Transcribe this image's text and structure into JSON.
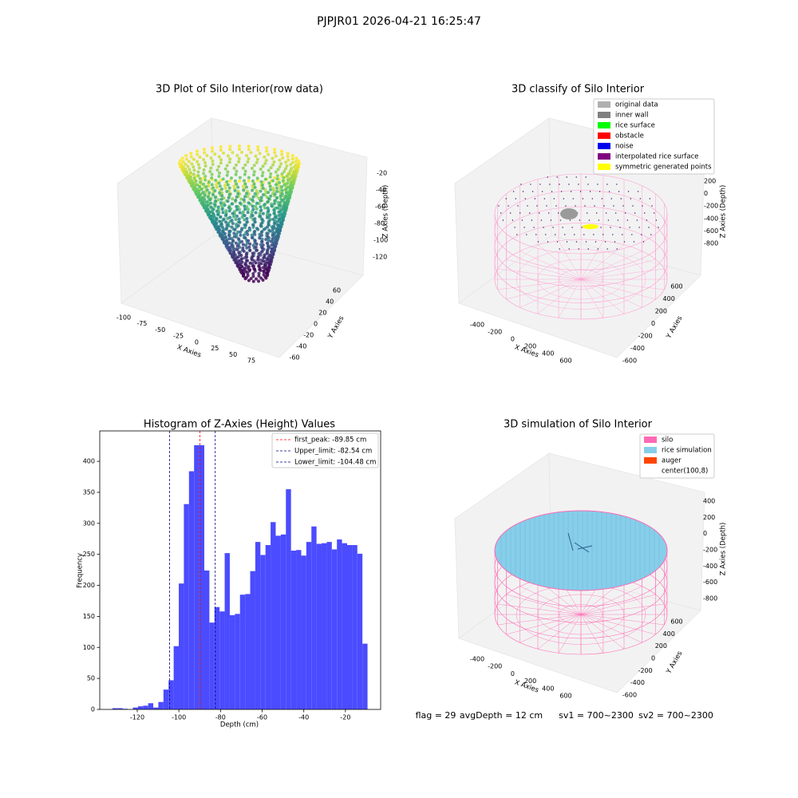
{
  "title": "PJPJR01 2026-04-21 16:25:47",
  "footer": [
    "flag = 29",
    "avgDepth = 12 cm",
    "sv1 = 700~2300",
    "sv2 = 700~2300"
  ],
  "chart_data": [
    {
      "type": "scatter3d",
      "title": "3D Plot of Silo Interior(row data)",
      "xlabel": "X Axies",
      "ylabel": "Y Axies",
      "zlabel": "Z Axies (Depth)",
      "xlim": [
        -100,
        75
      ],
      "xticks": [
        -100,
        -75,
        -50,
        -25,
        0,
        25,
        50,
        75
      ],
      "ylim": [
        -60,
        60
      ],
      "yticks": [
        -60,
        -40,
        -20,
        0,
        20,
        40,
        60
      ],
      "zlim": [
        -120,
        -20
      ],
      "zticks": [
        -120,
        -100,
        -80,
        -60,
        -40,
        -20
      ]
    },
    {
      "type": "scatter3d",
      "title": "3D classify of Silo Interior",
      "xlabel": "X Axies",
      "ylabel": "Y Axies",
      "zlabel": "Z Axies (Depth)",
      "xlim": [
        -400,
        600
      ],
      "xticks": [
        -400,
        -200,
        0,
        200,
        400,
        600
      ],
      "ylim": [
        -600,
        600
      ],
      "yticks": [
        -600,
        -400,
        -200,
        0,
        200,
        400,
        600
      ],
      "zlim": [
        -800,
        200
      ],
      "zticks": [
        -800,
        -600,
        -400,
        -200,
        0,
        200
      ],
      "legend": [
        {
          "name": "original data",
          "color": "#b0b0b0"
        },
        {
          "name": "inner wall",
          "color": "#808080"
        },
        {
          "name": "rice surface",
          "color": "#00ff00"
        },
        {
          "name": "obstacle",
          "color": "#ff0000"
        },
        {
          "name": "noise",
          "color": "#0000ee"
        },
        {
          "name": "interpolated rice surface",
          "color": "#800080"
        },
        {
          "name": "symmetric generated points",
          "color": "#ffff00"
        }
      ]
    },
    {
      "type": "histogram",
      "title": "Histogram of Z-Axies (Height) Values",
      "xlabel": "Depth (cm)",
      "ylabel": "Frequency",
      "color": "#4b4bff",
      "bins": [
        -131.9,
        -129.45,
        -127.0,
        -124.55,
        -122.1,
        -119.65,
        -117.2,
        -114.75,
        -112.3,
        -109.85,
        -107.4,
        -104.95,
        -102.5,
        -100.05,
        -97.6,
        -95.15,
        -92.7,
        -90.25,
        -87.8,
        -85.35,
        -82.9,
        -80.45,
        -78.0,
        -75.55,
        -73.1,
        -70.65,
        -68.2,
        -65.75,
        -63.3,
        -60.85,
        -58.4,
        -55.95,
        -53.5,
        -51.05,
        -48.6,
        -46.15,
        -43.7,
        -41.25,
        -38.8,
        -36.35,
        -33.9,
        -31.45,
        -29.0,
        -26.55,
        -24.1,
        -21.65,
        -19.2,
        -16.75,
        -14.3,
        -11.85,
        -9.4
      ],
      "values": [
        2,
        2,
        1,
        0,
        3,
        5,
        6,
        10,
        3,
        12,
        32,
        47,
        102,
        203,
        331,
        384,
        426,
        426,
        224,
        140,
        165,
        158,
        252,
        152,
        154,
        185,
        186,
        223,
        270,
        249,
        265,
        302,
        280,
        282,
        355,
        256,
        257,
        248,
        270,
        295,
        267,
        268,
        270,
        258,
        274,
        268,
        265,
        265,
        251,
        106
      ],
      "xlim": [
        -138,
        -3.1
      ],
      "xticks": [
        -120,
        -100,
        -80,
        -60,
        -40,
        -20
      ],
      "ylim": [
        0,
        449
      ],
      "yticks": [
        0,
        50,
        100,
        150,
        200,
        250,
        300,
        350,
        400
      ],
      "lines": [
        {
          "name": "first_peak: -89.85 cm",
          "value": -89.85,
          "color": "#ff0000"
        },
        {
          "name": "Upper_limit: -82.54 cm",
          "value": -82.54,
          "color": "#00008b"
        },
        {
          "name": "Lower_limit: -104.48 cm",
          "value": -104.48,
          "color": "#00008b"
        }
      ]
    },
    {
      "type": "surface3d",
      "title": "3D simulation of Silo Interior",
      "xlabel": "X Axies",
      "ylabel": "Y Axies",
      "zlabel": "Z Axies (Depth)",
      "xlim": [
        -400,
        600
      ],
      "xticks": [
        -400,
        -200,
        0,
        200,
        400,
        600
      ],
      "ylim": [
        -600,
        600
      ],
      "yticks": [
        -600,
        -400,
        -200,
        0,
        200,
        400,
        600
      ],
      "zlim": [
        -800,
        400
      ],
      "zticks": [
        -800,
        -600,
        -400,
        -200,
        0,
        200,
        400
      ],
      "legend": [
        {
          "name": "silo",
          "color": "#ff69b4"
        },
        {
          "name": "rice simulation",
          "color": "#87ceeb"
        },
        {
          "name": "auger",
          "color": "#ff4500"
        },
        {
          "name": "center(100,8)",
          "color": "#ffffff"
        }
      ]
    }
  ]
}
